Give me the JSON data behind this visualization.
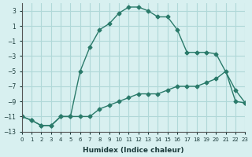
{
  "xlabel": "Humidex (Indice chaleur)",
  "ylabel": "",
  "bg_color": "#d8f0f0",
  "grid_color": "#b0d8d8",
  "line_color": "#2a7a6a",
  "xlim": [
    0,
    23
  ],
  "ylim": [
    -13,
    4
  ],
  "yticks": [
    3,
    1,
    -1,
    -3,
    -5,
    -7,
    -9,
    -11,
    -13
  ],
  "xticks": [
    0,
    1,
    2,
    3,
    4,
    5,
    6,
    7,
    8,
    9,
    10,
    11,
    12,
    13,
    14,
    15,
    16,
    17,
    18,
    19,
    20,
    21,
    22,
    23
  ],
  "series": [
    {
      "x": [
        0,
        1,
        2,
        3,
        4,
        5,
        6,
        7,
        8,
        9,
        10,
        11,
        12,
        13,
        14,
        15,
        16,
        17,
        18,
        19,
        20,
        21,
        22,
        23
      ],
      "y": [
        -11,
        -11.5,
        -12.2,
        -12.2,
        -11,
        -11,
        -11,
        -11,
        -10,
        -9.5,
        -9,
        -8.5,
        -8,
        -8,
        -8,
        -7.5,
        -7,
        -7,
        -7,
        -6.5,
        -6,
        -5,
        -9,
        -9.2
      ]
    },
    {
      "x": [
        0,
        1,
        2,
        3,
        4,
        5,
        6,
        7,
        8,
        9,
        10,
        11,
        12,
        13,
        14,
        15,
        16,
        17,
        18,
        19,
        20,
        22,
        23
      ],
      "y": [
        -11,
        -11.5,
        -12.2,
        -12.2,
        -11,
        -11,
        -5,
        -1.8,
        0.5,
        1.3,
        2.7,
        3.5,
        3.5,
        3,
        2.2,
        2.2,
        0.5,
        -2.5,
        -2.5,
        -2.5,
        -2.7,
        -7.5,
        -9.2
      ]
    }
  ]
}
